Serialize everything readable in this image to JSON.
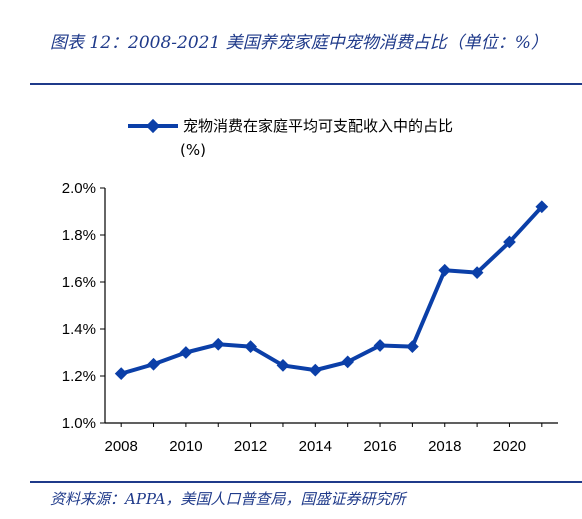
{
  "header": {
    "title": "图表 12：2008-2021 美国养宠家庭中宠物消费占比（单位：%）"
  },
  "footer": {
    "source": "资料来源：APPA，美国人口普查局，国盛证券研究所"
  },
  "colors": {
    "accent": "#1f3a8a",
    "series": "#0b3fa8"
  },
  "chart_data": {
    "type": "line",
    "x": [
      2008,
      2009,
      2010,
      2011,
      2012,
      2013,
      2014,
      2015,
      2016,
      2017,
      2018,
      2019,
      2020,
      2021
    ],
    "series": [
      {
        "name": "宠物消费在家庭平均可支配收入中的占比(%)",
        "values": [
          1.21,
          1.25,
          1.3,
          1.335,
          1.325,
          1.245,
          1.225,
          1.26,
          1.33,
          1.325,
          1.65,
          1.64,
          1.77,
          1.92
        ]
      }
    ],
    "ylim": [
      1.0,
      2.0
    ],
    "yticks": [
      "1.0%",
      "1.2%",
      "1.4%",
      "1.6%",
      "1.8%",
      "2.0%"
    ],
    "xticks": [
      "2008",
      "2010",
      "2012",
      "2014",
      "2016",
      "2018",
      "2020"
    ],
    "legend": "top",
    "grid": false
  }
}
